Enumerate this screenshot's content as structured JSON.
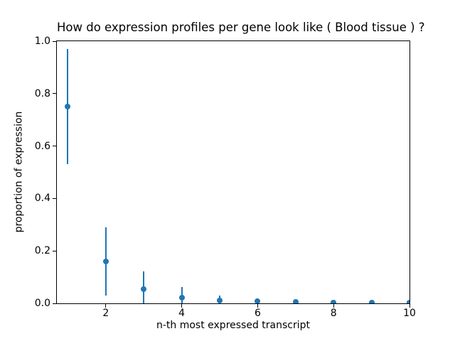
{
  "chart_data": {
    "type": "scatter",
    "title": "How do expression profiles per gene look like ( Blood tissue ) ?",
    "xlabel": "n-th most expressed transcript",
    "ylabel": "proportion of expression",
    "xlim": [
      0.71,
      10
    ],
    "ylim": [
      0,
      1
    ],
    "x_ticks": [
      2,
      4,
      6,
      8,
      10
    ],
    "x_tick_labels": [
      "2",
      "4",
      "6",
      "8",
      "10"
    ],
    "y_ticks": [
      0,
      0.2,
      0.4,
      0.6,
      0.8,
      1.0
    ],
    "y_tick_labels": [
      "0.0",
      "0.2",
      "0.4",
      "0.6",
      "0.8",
      "1.0"
    ],
    "grid": false,
    "legend": false,
    "marker": "circle",
    "marker_color": "#1f77b4",
    "series": [
      {
        "x": [
          1,
          2,
          3,
          4,
          5,
          6,
          7,
          8,
          9,
          10
        ],
        "y": [
          0.75,
          0.16,
          0.055,
          0.022,
          0.012,
          0.007,
          0.005,
          0.004,
          0.003,
          0.002
        ],
        "yerr": [
          0.22,
          0.13,
          0.068,
          0.04,
          0.018,
          0.012,
          0.008,
          0.006,
          0.005,
          0.004
        ]
      }
    ]
  }
}
